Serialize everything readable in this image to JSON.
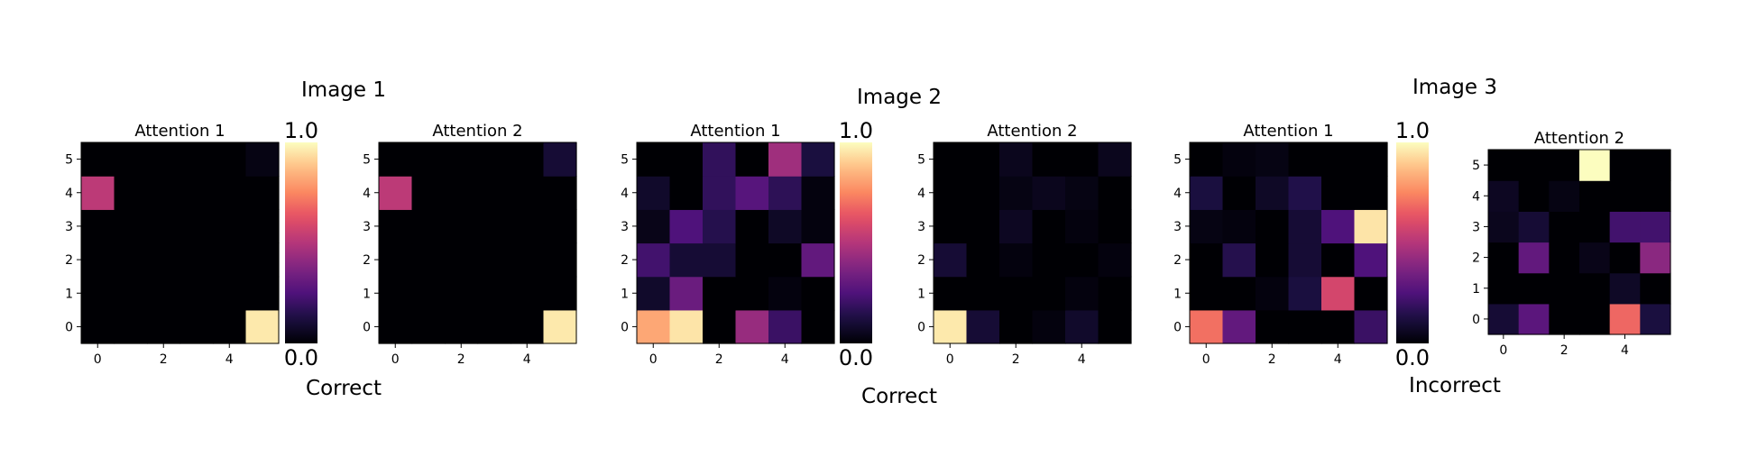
{
  "chart_data": {
    "type": "heatmap",
    "colormap": "magma",
    "vmin": 0.0,
    "vmax": 1.0,
    "rows": [
      0,
      1,
      2,
      3,
      4,
      5
    ],
    "cols": [
      0,
      1,
      2,
      3,
      4,
      5
    ],
    "x_ticks": [
      0,
      2,
      4
    ],
    "y_ticks": [
      0,
      1,
      2,
      3,
      4,
      5
    ],
    "groups": [
      {
        "title": "Image 1",
        "caption": "Correct",
        "colorbar": {
          "max_label": "1.0",
          "min_label": "0.0"
        },
        "panels": [
          {
            "title": "Attention 1",
            "values": [
              [
                0,
                0,
                0,
                0,
                0,
                0.96
              ],
              [
                0,
                0,
                0,
                0,
                0,
                0
              ],
              [
                0,
                0,
                0,
                0,
                0,
                0
              ],
              [
                0,
                0,
                0,
                0,
                0,
                0
              ],
              [
                0.52,
                0,
                0,
                0,
                0,
                0
              ],
              [
                0,
                0,
                0,
                0,
                0,
                0.03
              ]
            ]
          },
          {
            "title": "Attention 2",
            "values": [
              [
                0,
                0,
                0,
                0,
                0,
                0.96
              ],
              [
                0,
                0,
                0,
                0,
                0,
                0
              ],
              [
                0,
                0,
                0,
                0,
                0,
                0
              ],
              [
                0,
                0,
                0,
                0,
                0,
                0
              ],
              [
                0.52,
                0,
                0,
                0,
                0,
                0
              ],
              [
                0,
                0,
                0,
                0,
                0,
                0.1
              ]
            ]
          }
        ]
      },
      {
        "title": "Image 2",
        "caption": "Correct",
        "colorbar": {
          "max_label": "1.0",
          "min_label": "0.0"
        },
        "panels": [
          {
            "title": "Attention 1",
            "values": [
              [
                0.82,
                0.95,
                0,
                0.43,
                0.2,
                0
              ],
              [
                0.08,
                0.32,
                0,
                0,
                0.02,
                0
              ],
              [
                0.22,
                0.1,
                0.1,
                0,
                0,
                0.3
              ],
              [
                0.04,
                0.25,
                0.15,
                0,
                0.07,
                0.02
              ],
              [
                0.08,
                0,
                0.18,
                0.27,
                0.17,
                0.02
              ],
              [
                0,
                0,
                0.18,
                0,
                0.45,
                0.12
              ]
            ]
          },
          {
            "title": "Attention 2",
            "values": [
              [
                0.96,
                0.1,
                0,
                0.02,
                0.08,
                0
              ],
              [
                0,
                0,
                0,
                0,
                0.02,
                0
              ],
              [
                0.1,
                0,
                0.02,
                0,
                0,
                0.02
              ],
              [
                0,
                0,
                0.06,
                0,
                0.02,
                0
              ],
              [
                0,
                0,
                0.03,
                0.05,
                0.03,
                0
              ],
              [
                0,
                0,
                0.05,
                0,
                0,
                0.05
              ]
            ]
          }
        ]
      },
      {
        "title": "Image 3",
        "caption": "Incorrect",
        "colorbar": {
          "max_label": "1.0",
          "min_label": "0.0"
        },
        "panels": [
          {
            "title": "Attention 1",
            "values": [
              [
                0.7,
                0.3,
                0,
                0,
                0,
                0.2
              ],
              [
                0,
                0,
                0.02,
                0.12,
                0.58,
                0
              ],
              [
                0,
                0.15,
                0,
                0.1,
                0,
                0.25
              ],
              [
                0.03,
                0.02,
                0,
                0.1,
                0.25,
                0.95
              ],
              [
                0.12,
                0,
                0.07,
                0.14,
                0,
                0
              ],
              [
                0,
                0.02,
                0.03,
                0,
                0,
                0
              ]
            ]
          },
          {
            "title": "Attention 2",
            "values": [
              [
                0.1,
                0.28,
                0,
                0,
                0.68,
                0.12
              ],
              [
                0,
                0,
                0,
                0,
                0.07,
                0
              ],
              [
                0,
                0.3,
                0,
                0.04,
                0,
                0.4
              ],
              [
                0.05,
                0.1,
                0,
                0,
                0.22,
                0.22
              ],
              [
                0.06,
                0,
                0.03,
                0,
                0,
                0
              ],
              [
                0,
                0,
                0,
                1.0,
                0,
                0
              ]
            ]
          }
        ]
      }
    ]
  }
}
